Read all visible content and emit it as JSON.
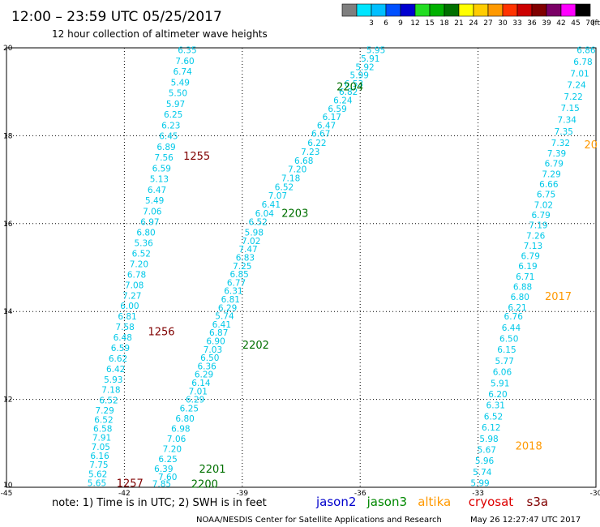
{
  "header": {
    "title": "12:00 – 23:59 UTC 05/25/2017",
    "subtitle": "12 hour collection of altimeter wave heights"
  },
  "colorbar": {
    "unit": "(ft)",
    "entries": [
      {
        "label": "",
        "color": "#7f7f7f"
      },
      {
        "label": "3",
        "color": "#00e5ff"
      },
      {
        "label": "6",
        "color": "#00bfff"
      },
      {
        "label": "9",
        "color": "#0050ff"
      },
      {
        "label": "12",
        "color": "#0000d0"
      },
      {
        "label": "15",
        "color": "#22dd22"
      },
      {
        "label": "18",
        "color": "#00b000"
      },
      {
        "label": "21",
        "color": "#007000"
      },
      {
        "label": "24",
        "color": "#ffff00"
      },
      {
        "label": "27",
        "color": "#ffcc00"
      },
      {
        "label": "30",
        "color": "#ff9900"
      },
      {
        "label": "33",
        "color": "#ff3300"
      },
      {
        "label": "36",
        "color": "#cc0000"
      },
      {
        "label": "39",
        "color": "#800000"
      },
      {
        "label": "42",
        "color": "#7a0066"
      },
      {
        "label": "45",
        "color": "#ff00ff"
      },
      {
        "label": "70",
        "color": "#000000"
      }
    ]
  },
  "footer": {
    "note": "note: 1) Time is in UTC; 2) SWH is in feet",
    "satellites": [
      {
        "name": "jason2",
        "color": "#0000cc"
      },
      {
        "name": "jason3",
        "color": "#008800"
      },
      {
        "name": "altika",
        "color": "#ff9900"
      },
      {
        "name": "cryosat",
        "color": "#dd0000"
      },
      {
        "name": "s3a",
        "color": "#800000"
      }
    ],
    "credit": "NOAA/NESDIS Center for Satellite Applications and Research",
    "timestamp": "May 26 12:27:47 UTC 2017"
  },
  "chart_data": {
    "type": "scatter",
    "xlim": [
      -45,
      -30
    ],
    "ylim": [
      10,
      20
    ],
    "xticks": [
      -45,
      -42,
      -39,
      -36,
      -33,
      -30
    ],
    "xtick_labels": [
      "-45",
      "-42",
      "-39",
      "-36",
      "-33",
      "-30"
    ],
    "yticks": [
      10,
      12,
      14,
      16,
      18,
      20
    ],
    "ytick_labels": [
      "10",
      "12",
      "14",
      "16",
      "18",
      "20"
    ],
    "grid": true,
    "value_color": "#00c8e8",
    "tracks": [
      {
        "label": "1255",
        "label_color": "#800000",
        "label_x": -40.5,
        "label_y": 17.55,
        "start": [
          -40.4,
          19.95
        ],
        "end": [
          -41.35,
          16.04
        ],
        "values": [
          "6.35",
          "7.60",
          "6.74",
          "5.49",
          "5.50",
          "5.97",
          "6.25",
          "6.23",
          "6.45",
          "6.89",
          "7.56",
          "6.59",
          "5.13",
          "6.47",
          "5.49",
          "7.06",
          "6.97"
        ]
      },
      {
        "label": "1256",
        "label_color": "#800000",
        "label_x": -41.4,
        "label_y": 13.55,
        "start": [
          -41.45,
          15.8
        ],
        "end": [
          -42.4,
          11.98
        ],
        "values": [
          "6.80",
          "5.36",
          "6.52",
          "7.20",
          "6.78",
          "7.08",
          "7.27",
          "6.00",
          "6.81",
          "7.58",
          "6.48",
          "6.59",
          "6.62",
          "6.42",
          "5.93",
          "7.18",
          "6.52"
        ]
      },
      {
        "label": "1257",
        "label_color": "#800000",
        "label_x": -42.2,
        "label_y": 10.1,
        "start": [
          -42.5,
          11.75
        ],
        "end": [
          -42.7,
          10.1
        ],
        "values": [
          "7.29",
          "6.52",
          "6.58",
          "7.91",
          "7.05",
          "6.16",
          "7.75",
          "5.62",
          "5.65"
        ]
      },
      {
        "label": "2204",
        "label_color": "#007000",
        "label_x": -36.6,
        "label_y": 19.12,
        "start": [
          -35.6,
          19.95
        ],
        "end": [
          -37.0,
          18.05
        ],
        "values": [
          "5.95",
          "5.91",
          "5.92",
          "5.99",
          "6.53",
          "6.82",
          "6.24",
          "6.59",
          "6.17",
          "6.47",
          "6.67"
        ]
      },
      {
        "label": "2203",
        "label_color": "#007000",
        "label_x": -38.0,
        "label_y": 16.25,
        "start": [
          -37.1,
          17.84
        ],
        "end": [
          -38.6,
          16.04
        ],
        "values": [
          "6.22",
          "7.23",
          "6.68",
          "7.20",
          "7.18",
          "6.52",
          "7.07",
          "6.41",
          "6.04",
          "6.52"
        ]
      },
      {
        "label": "2202",
        "label_color": "#007000",
        "label_x": -39.0,
        "label_y": 13.25,
        "start": [
          -38.7,
          15.8
        ],
        "end": [
          -40.2,
          12.0
        ],
        "values": [
          "5.98",
          "7.02",
          "7.47",
          "6.83",
          "7.25",
          "6.85",
          "6.77",
          "6.31",
          "6.81",
          "6.29",
          "5.74",
          "6.41",
          "6.87",
          "6.90",
          "7.03",
          "6.50",
          "6.36",
          "6.29",
          "6.14",
          "7.01",
          "6.29"
        ]
      },
      {
        "label": "2201",
        "label_color": "#007000",
        "label_x": -40.1,
        "label_y": 10.42,
        "start": [
          -40.35,
          11.8
        ],
        "end": [
          -41.0,
          10.42
        ],
        "values": [
          "6.25",
          "6.80",
          "6.98",
          "7.06",
          "7.20",
          "6.25",
          "6.39"
        ]
      },
      {
        "label": "2200",
        "label_color": "#007000",
        "label_x": -40.3,
        "label_y": 10.08,
        "start": [
          -40.9,
          10.24
        ],
        "end": [
          -41.05,
          10.08
        ],
        "values": [
          "7.60",
          "7.85"
        ]
      },
      {
        "label": "20",
        "label_color": "#ff9900",
        "label_x": -30.3,
        "label_y": 17.8,
        "start": [
          -30.25,
          19.95
        ],
        "end": [
          -30.9,
          17.84
        ],
        "values": [
          "6.86",
          "6.78",
          "7.01",
          "7.24",
          "7.22",
          "7.15",
          "7.34",
          "7.35",
          "7.32"
        ]
      },
      {
        "label": "2017",
        "label_color": "#ff9900",
        "label_x": -31.3,
        "label_y": 14.35,
        "start": [
          -31.0,
          17.6
        ],
        "end": [
          -32.0,
          14.1
        ],
        "values": [
          "7.39",
          "6.79",
          "7.29",
          "6.66",
          "6.75",
          "7.02",
          "6.79",
          "7.19",
          "7.26",
          "7.13",
          "6.79",
          "6.19",
          "6.71",
          "6.88",
          "6.80",
          "6.21"
        ]
      },
      {
        "label": "2018",
        "label_color": "#ff9900",
        "label_x": -32.05,
        "label_y": 10.95,
        "start": [
          -32.1,
          13.89
        ],
        "end": [
          -32.95,
          10.1
        ],
        "values": [
          "6.76",
          "6.44",
          "6.50",
          "6.15",
          "5.77",
          "6.06",
          "5.91",
          "6.20",
          "6.31",
          "6.52",
          "6.12",
          "5.98",
          "5.67",
          "5.96",
          "5.74",
          "5.99"
        ]
      }
    ]
  }
}
